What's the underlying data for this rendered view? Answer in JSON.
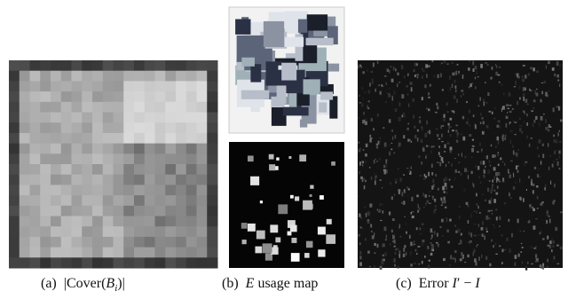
{
  "figures": [
    {
      "label": "(a)",
      "caption": {
        "before": "|Cover(",
        "var": "B",
        "sub": "i",
        "after": ")|"
      }
    },
    {
      "label": "(b)",
      "caption": {
        "var": "E",
        "after": " usage map"
      }
    },
    {
      "label": "(c)",
      "caption": {
        "before": "Error ",
        "var": "I",
        "prime": "′",
        "mid": " − ",
        "var2": "I"
      }
    }
  ]
}
